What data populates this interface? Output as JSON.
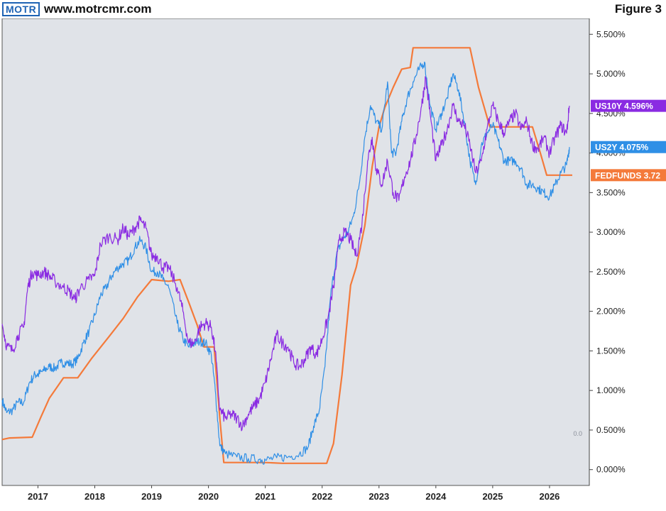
{
  "header": {
    "logo_text": "MOTR",
    "site": "www.motrcmr.com",
    "figure_label": "Figure 3"
  },
  "chart_data": {
    "type": "line",
    "title": "",
    "xlabel": "",
    "ylabel": "",
    "x_ticks": [
      "2017",
      "2018",
      "2019",
      "2020",
      "2021",
      "2022",
      "2023",
      "2024",
      "2025",
      "2026"
    ],
    "y_ticks": [
      "0.000%",
      "0.500%",
      "1.000%",
      "1.500%",
      "2.000%",
      "2.500%",
      "3.000%",
      "3.500%",
      "4.000%",
      "4.500%",
      "5.000%",
      "5.500%"
    ],
    "xlim": [
      2016.37,
      2026.7
    ],
    "ylim": [
      -0.2,
      5.7
    ],
    "grid": false,
    "corner_label": "0.0",
    "series": [
      {
        "name": "US10Y",
        "color": "#8a2be2",
        "last_label": "US10Y 4.596%",
        "points": [
          [
            2016.37,
            1.84
          ],
          [
            2016.45,
            1.56
          ],
          [
            2016.55,
            1.5
          ],
          [
            2016.65,
            1.7
          ],
          [
            2016.75,
            1.8
          ],
          [
            2016.82,
            2.3
          ],
          [
            2016.9,
            2.5
          ],
          [
            2017.0,
            2.45
          ],
          [
            2017.1,
            2.5
          ],
          [
            2017.2,
            2.45
          ],
          [
            2017.3,
            2.38
          ],
          [
            2017.45,
            2.3
          ],
          [
            2017.55,
            2.25
          ],
          [
            2017.65,
            2.15
          ],
          [
            2017.75,
            2.3
          ],
          [
            2017.9,
            2.4
          ],
          [
            2018.0,
            2.45
          ],
          [
            2018.1,
            2.85
          ],
          [
            2018.25,
            2.95
          ],
          [
            2018.4,
            2.9
          ],
          [
            2018.5,
            3.05
          ],
          [
            2018.6,
            2.95
          ],
          [
            2018.7,
            3.05
          ],
          [
            2018.8,
            3.15
          ],
          [
            2018.9,
            3.05
          ],
          [
            2019.0,
            2.7
          ],
          [
            2019.1,
            2.7
          ],
          [
            2019.2,
            2.55
          ],
          [
            2019.3,
            2.55
          ],
          [
            2019.45,
            2.3
          ],
          [
            2019.55,
            2.0
          ],
          [
            2019.65,
            1.6
          ],
          [
            2019.75,
            1.6
          ],
          [
            2019.85,
            1.8
          ],
          [
            2019.95,
            1.85
          ],
          [
            2020.05,
            1.8
          ],
          [
            2020.12,
            1.5
          ],
          [
            2020.2,
            0.75
          ],
          [
            2020.3,
            0.65
          ],
          [
            2020.4,
            0.7
          ],
          [
            2020.5,
            0.65
          ],
          [
            2020.6,
            0.55
          ],
          [
            2020.7,
            0.7
          ],
          [
            2020.8,
            0.8
          ],
          [
            2020.9,
            0.9
          ],
          [
            2021.0,
            1.1
          ],
          [
            2021.1,
            1.4
          ],
          [
            2021.2,
            1.7
          ],
          [
            2021.3,
            1.6
          ],
          [
            2021.4,
            1.55
          ],
          [
            2021.5,
            1.35
          ],
          [
            2021.6,
            1.3
          ],
          [
            2021.7,
            1.4
          ],
          [
            2021.8,
            1.55
          ],
          [
            2021.9,
            1.45
          ],
          [
            2022.0,
            1.65
          ],
          [
            2022.1,
            1.9
          ],
          [
            2022.2,
            2.3
          ],
          [
            2022.3,
            2.9
          ],
          [
            2022.4,
            3.0
          ],
          [
            2022.5,
            2.9
          ],
          [
            2022.6,
            2.7
          ],
          [
            2022.7,
            3.1
          ],
          [
            2022.8,
            3.9
          ],
          [
            2022.88,
            4.2
          ],
          [
            2022.95,
            3.8
          ],
          [
            2023.05,
            3.6
          ],
          [
            2023.15,
            3.9
          ],
          [
            2023.25,
            3.5
          ],
          [
            2023.35,
            3.4
          ],
          [
            2023.45,
            3.7
          ],
          [
            2023.55,
            3.9
          ],
          [
            2023.65,
            4.2
          ],
          [
            2023.75,
            4.6
          ],
          [
            2023.82,
            4.95
          ],
          [
            2023.9,
            4.5
          ],
          [
            2024.0,
            3.9
          ],
          [
            2024.1,
            4.1
          ],
          [
            2024.2,
            4.3
          ],
          [
            2024.3,
            4.6
          ],
          [
            2024.4,
            4.4
          ],
          [
            2024.5,
            4.35
          ],
          [
            2024.6,
            4.1
          ],
          [
            2024.7,
            3.75
          ],
          [
            2024.8,
            3.9
          ],
          [
            2024.9,
            4.3
          ],
          [
            2025.0,
            4.6
          ],
          [
            2025.1,
            4.4
          ],
          [
            2025.2,
            4.25
          ],
          [
            2025.3,
            4.4
          ],
          [
            2025.4,
            4.5
          ],
          [
            2025.5,
            4.3
          ],
          [
            2025.6,
            4.4
          ],
          [
            2025.7,
            4.1
          ],
          [
            2025.8,
            4.05
          ],
          [
            2025.9,
            4.2
          ],
          [
            2026.0,
            4.0
          ],
          [
            2026.1,
            4.2
          ],
          [
            2026.2,
            4.35
          ],
          [
            2026.3,
            4.25
          ],
          [
            2026.35,
            4.596
          ]
        ]
      },
      {
        "name": "US2Y",
        "color": "#2f8fe6",
        "last_label": "US2Y 4.075%",
        "points": [
          [
            2016.37,
            0.88
          ],
          [
            2016.45,
            0.72
          ],
          [
            2016.55,
            0.75
          ],
          [
            2016.65,
            0.85
          ],
          [
            2016.75,
            0.85
          ],
          [
            2016.85,
            1.1
          ],
          [
            2016.95,
            1.2
          ],
          [
            2017.0,
            1.2
          ],
          [
            2017.1,
            1.25
          ],
          [
            2017.2,
            1.3
          ],
          [
            2017.3,
            1.28
          ],
          [
            2017.4,
            1.35
          ],
          [
            2017.5,
            1.35
          ],
          [
            2017.6,
            1.33
          ],
          [
            2017.7,
            1.4
          ],
          [
            2017.8,
            1.6
          ],
          [
            2017.9,
            1.75
          ],
          [
            2018.0,
            1.95
          ],
          [
            2018.1,
            2.2
          ],
          [
            2018.2,
            2.3
          ],
          [
            2018.3,
            2.45
          ],
          [
            2018.4,
            2.55
          ],
          [
            2018.5,
            2.6
          ],
          [
            2018.6,
            2.65
          ],
          [
            2018.7,
            2.8
          ],
          [
            2018.8,
            2.9
          ],
          [
            2018.9,
            2.8
          ],
          [
            2019.0,
            2.5
          ],
          [
            2019.1,
            2.5
          ],
          [
            2019.2,
            2.4
          ],
          [
            2019.3,
            2.3
          ],
          [
            2019.45,
            1.85
          ],
          [
            2019.55,
            1.65
          ],
          [
            2019.65,
            1.55
          ],
          [
            2019.75,
            1.6
          ],
          [
            2019.85,
            1.62
          ],
          [
            2019.95,
            1.6
          ],
          [
            2020.05,
            1.45
          ],
          [
            2020.12,
            1.0
          ],
          [
            2020.2,
            0.3
          ],
          [
            2020.3,
            0.2
          ],
          [
            2020.5,
            0.16
          ],
          [
            2020.7,
            0.14
          ],
          [
            2020.9,
            0.13
          ],
          [
            2021.0,
            0.12
          ],
          [
            2021.2,
            0.15
          ],
          [
            2021.4,
            0.16
          ],
          [
            2021.6,
            0.2
          ],
          [
            2021.75,
            0.28
          ],
          [
            2021.85,
            0.55
          ],
          [
            2021.95,
            0.75
          ],
          [
            2022.05,
            1.3
          ],
          [
            2022.15,
            2.2
          ],
          [
            2022.25,
            2.7
          ],
          [
            2022.35,
            2.9
          ],
          [
            2022.45,
            3.0
          ],
          [
            2022.55,
            3.2
          ],
          [
            2022.65,
            3.6
          ],
          [
            2022.75,
            4.2
          ],
          [
            2022.85,
            4.6
          ],
          [
            2022.95,
            4.4
          ],
          [
            2023.05,
            4.3
          ],
          [
            2023.15,
            4.9
          ],
          [
            2023.22,
            4.0
          ],
          [
            2023.3,
            4.0
          ],
          [
            2023.4,
            4.4
          ],
          [
            2023.5,
            4.7
          ],
          [
            2023.6,
            4.9
          ],
          [
            2023.7,
            5.05
          ],
          [
            2023.8,
            5.15
          ],
          [
            2023.9,
            4.6
          ],
          [
            2024.0,
            4.3
          ],
          [
            2024.1,
            4.5
          ],
          [
            2024.2,
            4.7
          ],
          [
            2024.3,
            5.0
          ],
          [
            2024.4,
            4.8
          ],
          [
            2024.5,
            4.4
          ],
          [
            2024.6,
            3.9
          ],
          [
            2024.7,
            3.6
          ],
          [
            2024.8,
            4.1
          ],
          [
            2024.9,
            4.25
          ],
          [
            2025.0,
            4.35
          ],
          [
            2025.1,
            4.15
          ],
          [
            2025.2,
            3.9
          ],
          [
            2025.3,
            3.9
          ],
          [
            2025.4,
            3.9
          ],
          [
            2025.5,
            3.8
          ],
          [
            2025.6,
            3.6
          ],
          [
            2025.7,
            3.6
          ],
          [
            2025.8,
            3.55
          ],
          [
            2025.9,
            3.5
          ],
          [
            2026.0,
            3.45
          ],
          [
            2026.1,
            3.6
          ],
          [
            2026.2,
            3.75
          ],
          [
            2026.3,
            3.85
          ],
          [
            2026.35,
            4.075
          ]
        ]
      },
      {
        "name": "FEDFUNDS",
        "color": "#f47a3a",
        "last_label": "FEDFUNDS 3.72",
        "points": [
          [
            2016.37,
            0.38
          ],
          [
            2016.5,
            0.4
          ],
          [
            2016.9,
            0.41
          ],
          [
            2017.05,
            0.66
          ],
          [
            2017.2,
            0.9
          ],
          [
            2017.45,
            1.16
          ],
          [
            2017.7,
            1.16
          ],
          [
            2017.95,
            1.41
          ],
          [
            2018.25,
            1.68
          ],
          [
            2018.5,
            1.91
          ],
          [
            2018.75,
            2.18
          ],
          [
            2019.0,
            2.4
          ],
          [
            2019.3,
            2.38
          ],
          [
            2019.5,
            2.4
          ],
          [
            2019.65,
            2.12
          ],
          [
            2019.8,
            1.83
          ],
          [
            2019.92,
            1.55
          ],
          [
            2020.1,
            1.55
          ],
          [
            2020.2,
            0.65
          ],
          [
            2020.27,
            0.09
          ],
          [
            2020.5,
            0.09
          ],
          [
            2020.8,
            0.09
          ],
          [
            2021.0,
            0.09
          ],
          [
            2021.3,
            0.08
          ],
          [
            2021.6,
            0.08
          ],
          [
            2021.9,
            0.08
          ],
          [
            2022.08,
            0.08
          ],
          [
            2022.2,
            0.33
          ],
          [
            2022.35,
            1.2
          ],
          [
            2022.5,
            2.33
          ],
          [
            2022.6,
            2.56
          ],
          [
            2022.75,
            3.08
          ],
          [
            2022.88,
            3.83
          ],
          [
            2023.0,
            4.33
          ],
          [
            2023.1,
            4.57
          ],
          [
            2023.25,
            4.83
          ],
          [
            2023.4,
            5.06
          ],
          [
            2023.55,
            5.08
          ],
          [
            2023.6,
            5.33
          ],
          [
            2024.0,
            5.33
          ],
          [
            2024.6,
            5.33
          ],
          [
            2024.75,
            4.83
          ],
          [
            2024.85,
            4.58
          ],
          [
            2024.95,
            4.33
          ],
          [
            2025.7,
            4.33
          ],
          [
            2025.85,
            3.97
          ],
          [
            2025.95,
            3.72
          ],
          [
            2026.1,
            3.72
          ],
          [
            2026.4,
            3.72
          ]
        ]
      }
    ]
  }
}
